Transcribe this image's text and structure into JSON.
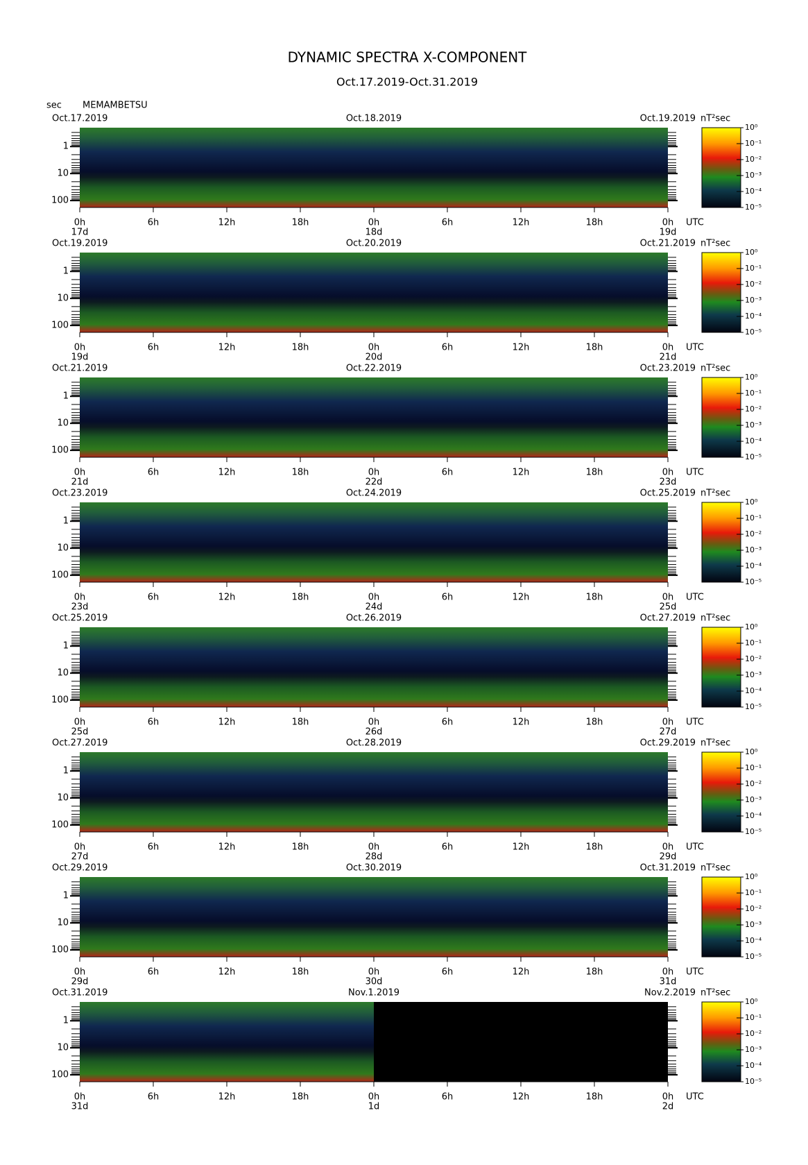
{
  "title": "DYNAMIC SPECTRA X-COMPONENT",
  "subtitle": "Oct.17.2019-Oct.31.2019",
  "y_unit": "sec",
  "station": "MEMAMBETSU",
  "chart_data": [
    {
      "type": "heatmap",
      "date_start": "Oct.17.2019",
      "date_mid": "Oct.18.2019",
      "date_end": "Oct.19.2019",
      "colorbar_label": "nT²sec",
      "x_unit": "UTC",
      "xlim": [
        0,
        48
      ],
      "coverage": [
        0,
        48
      ],
      "xticks": [
        {
          "value": 0,
          "label": "0h"
        },
        {
          "value": 6,
          "label": "6h"
        },
        {
          "value": 12,
          "label": "12h"
        },
        {
          "value": 18,
          "label": "18h"
        },
        {
          "value": 24,
          "label": "0h"
        },
        {
          "value": 30,
          "label": "6h"
        },
        {
          "value": 36,
          "label": "12h"
        },
        {
          "value": 42,
          "label": "18h"
        },
        {
          "value": 48,
          "label": "0h"
        }
      ],
      "day_ticks": [
        {
          "value": 0,
          "label": "17d"
        },
        {
          "value": 24,
          "label": "18d"
        },
        {
          "value": 48,
          "label": "19d"
        }
      ],
      "ylim": [
        0.2,
        180
      ],
      "log_y": true,
      "y_inverted": true,
      "yticks": [
        1,
        10,
        100
      ],
      "yminorticks": [
        0.3,
        0.4,
        0.5,
        0.6,
        0.7,
        0.8,
        0.9,
        2,
        3,
        4,
        5,
        6,
        7,
        8,
        9,
        20,
        30,
        40,
        50,
        60,
        70,
        80,
        90
      ],
      "colorbar_lim": [
        1e-05,
        1
      ],
      "colorbar_ticks": [
        {
          "value": 1,
          "label": "10⁰"
        },
        {
          "value": 0.1,
          "label": "10⁻¹"
        },
        {
          "value": 0.01,
          "label": "10⁻²"
        },
        {
          "value": 0.001,
          "label": "10⁻³"
        },
        {
          "value": 0.0001,
          "label": "10⁻⁴"
        },
        {
          "value": 1e-05,
          "label": "10⁻⁵"
        }
      ]
    },
    {
      "type": "heatmap",
      "date_start": "Oct.19.2019",
      "date_mid": "Oct.20.2019",
      "date_end": "Oct.21.2019",
      "colorbar_label": "nT²sec",
      "x_unit": "UTC",
      "xlim": [
        0,
        48
      ],
      "coverage": [
        0,
        48
      ],
      "xticks": [
        {
          "value": 0,
          "label": "0h"
        },
        {
          "value": 6,
          "label": "6h"
        },
        {
          "value": 12,
          "label": "12h"
        },
        {
          "value": 18,
          "label": "18h"
        },
        {
          "value": 24,
          "label": "0h"
        },
        {
          "value": 30,
          "label": "6h"
        },
        {
          "value": 36,
          "label": "12h"
        },
        {
          "value": 42,
          "label": "18h"
        },
        {
          "value": 48,
          "label": "0h"
        }
      ],
      "day_ticks": [
        {
          "value": 0,
          "label": "19d"
        },
        {
          "value": 24,
          "label": "20d"
        },
        {
          "value": 48,
          "label": "21d"
        }
      ],
      "ylim": [
        0.2,
        180
      ],
      "log_y": true,
      "y_inverted": true,
      "yticks": [
        1,
        10,
        100
      ],
      "yminorticks": [
        0.3,
        0.4,
        0.5,
        0.6,
        0.7,
        0.8,
        0.9,
        2,
        3,
        4,
        5,
        6,
        7,
        8,
        9,
        20,
        30,
        40,
        50,
        60,
        70,
        80,
        90
      ],
      "colorbar_lim": [
        1e-05,
        1
      ],
      "colorbar_ticks": [
        {
          "value": 1,
          "label": "10⁰"
        },
        {
          "value": 0.1,
          "label": "10⁻¹"
        },
        {
          "value": 0.01,
          "label": "10⁻²"
        },
        {
          "value": 0.001,
          "label": "10⁻³"
        },
        {
          "value": 0.0001,
          "label": "10⁻⁴"
        },
        {
          "value": 1e-05,
          "label": "10⁻⁵"
        }
      ]
    },
    {
      "type": "heatmap",
      "date_start": "Oct.21.2019",
      "date_mid": "Oct.22.2019",
      "date_end": "Oct.23.2019",
      "colorbar_label": "nT²sec",
      "x_unit": "UTC",
      "xlim": [
        0,
        48
      ],
      "coverage": [
        0,
        48
      ],
      "xticks": [
        {
          "value": 0,
          "label": "0h"
        },
        {
          "value": 6,
          "label": "6h"
        },
        {
          "value": 12,
          "label": "12h"
        },
        {
          "value": 18,
          "label": "18h"
        },
        {
          "value": 24,
          "label": "0h"
        },
        {
          "value": 30,
          "label": "6h"
        },
        {
          "value": 36,
          "label": "12h"
        },
        {
          "value": 42,
          "label": "18h"
        },
        {
          "value": 48,
          "label": "0h"
        }
      ],
      "day_ticks": [
        {
          "value": 0,
          "label": "21d"
        },
        {
          "value": 24,
          "label": "22d"
        },
        {
          "value": 48,
          "label": "23d"
        }
      ],
      "ylim": [
        0.2,
        180
      ],
      "log_y": true,
      "y_inverted": true,
      "yticks": [
        1,
        10,
        100
      ],
      "yminorticks": [
        0.3,
        0.4,
        0.5,
        0.6,
        0.7,
        0.8,
        0.9,
        2,
        3,
        4,
        5,
        6,
        7,
        8,
        9,
        20,
        30,
        40,
        50,
        60,
        70,
        80,
        90
      ],
      "colorbar_lim": [
        1e-05,
        1
      ],
      "colorbar_ticks": [
        {
          "value": 1,
          "label": "10⁰"
        },
        {
          "value": 0.1,
          "label": "10⁻¹"
        },
        {
          "value": 0.01,
          "label": "10⁻²"
        },
        {
          "value": 0.001,
          "label": "10⁻³"
        },
        {
          "value": 0.0001,
          "label": "10⁻⁴"
        },
        {
          "value": 1e-05,
          "label": "10⁻⁵"
        }
      ]
    },
    {
      "type": "heatmap",
      "date_start": "Oct.23.2019",
      "date_mid": "Oct.24.2019",
      "date_end": "Oct.25.2019",
      "colorbar_label": "nT²sec",
      "x_unit": "UTC",
      "xlim": [
        0,
        48
      ],
      "coverage": [
        0,
        48
      ],
      "xticks": [
        {
          "value": 0,
          "label": "0h"
        },
        {
          "value": 6,
          "label": "6h"
        },
        {
          "value": 12,
          "label": "12h"
        },
        {
          "value": 18,
          "label": "18h"
        },
        {
          "value": 24,
          "label": "0h"
        },
        {
          "value": 30,
          "label": "6h"
        },
        {
          "value": 36,
          "label": "12h"
        },
        {
          "value": 42,
          "label": "18h"
        },
        {
          "value": 48,
          "label": "0h"
        }
      ],
      "day_ticks": [
        {
          "value": 0,
          "label": "23d"
        },
        {
          "value": 24,
          "label": "24d"
        },
        {
          "value": 48,
          "label": "25d"
        }
      ],
      "ylim": [
        0.2,
        180
      ],
      "log_y": true,
      "y_inverted": true,
      "yticks": [
        1,
        10,
        100
      ],
      "yminorticks": [
        0.3,
        0.4,
        0.5,
        0.6,
        0.7,
        0.8,
        0.9,
        2,
        3,
        4,
        5,
        6,
        7,
        8,
        9,
        20,
        30,
        40,
        50,
        60,
        70,
        80,
        90
      ],
      "colorbar_lim": [
        1e-05,
        1
      ],
      "colorbar_ticks": [
        {
          "value": 1,
          "label": "10⁰"
        },
        {
          "value": 0.1,
          "label": "10⁻¹"
        },
        {
          "value": 0.01,
          "label": "10⁻²"
        },
        {
          "value": 0.001,
          "label": "10⁻³"
        },
        {
          "value": 0.0001,
          "label": "10⁻⁴"
        },
        {
          "value": 1e-05,
          "label": "10⁻⁵"
        }
      ]
    },
    {
      "type": "heatmap",
      "date_start": "Oct.25.2019",
      "date_mid": "Oct.26.2019",
      "date_end": "Oct.27.2019",
      "colorbar_label": "nT²sec",
      "x_unit": "UTC",
      "xlim": [
        0,
        48
      ],
      "coverage": [
        0,
        48
      ],
      "xticks": [
        {
          "value": 0,
          "label": "0h"
        },
        {
          "value": 6,
          "label": "6h"
        },
        {
          "value": 12,
          "label": "12h"
        },
        {
          "value": 18,
          "label": "18h"
        },
        {
          "value": 24,
          "label": "0h"
        },
        {
          "value": 30,
          "label": "6h"
        },
        {
          "value": 36,
          "label": "12h"
        },
        {
          "value": 42,
          "label": "18h"
        },
        {
          "value": 48,
          "label": "0h"
        }
      ],
      "day_ticks": [
        {
          "value": 0,
          "label": "25d"
        },
        {
          "value": 24,
          "label": "26d"
        },
        {
          "value": 48,
          "label": "27d"
        }
      ],
      "ylim": [
        0.2,
        180
      ],
      "log_y": true,
      "y_inverted": true,
      "yticks": [
        1,
        10,
        100
      ],
      "yminorticks": [
        0.3,
        0.4,
        0.5,
        0.6,
        0.7,
        0.8,
        0.9,
        2,
        3,
        4,
        5,
        6,
        7,
        8,
        9,
        20,
        30,
        40,
        50,
        60,
        70,
        80,
        90
      ],
      "colorbar_lim": [
        1e-05,
        1
      ],
      "colorbar_ticks": [
        {
          "value": 1,
          "label": "10⁰"
        },
        {
          "value": 0.1,
          "label": "10⁻¹"
        },
        {
          "value": 0.01,
          "label": "10⁻²"
        },
        {
          "value": 0.001,
          "label": "10⁻³"
        },
        {
          "value": 0.0001,
          "label": "10⁻⁴"
        },
        {
          "value": 1e-05,
          "label": "10⁻⁵"
        }
      ]
    },
    {
      "type": "heatmap",
      "date_start": "Oct.27.2019",
      "date_mid": "Oct.28.2019",
      "date_end": "Oct.29.2019",
      "colorbar_label": "nT²sec",
      "x_unit": "UTC",
      "xlim": [
        0,
        48
      ],
      "coverage": [
        0,
        48
      ],
      "xticks": [
        {
          "value": 0,
          "label": "0h"
        },
        {
          "value": 6,
          "label": "6h"
        },
        {
          "value": 12,
          "label": "12h"
        },
        {
          "value": 18,
          "label": "18h"
        },
        {
          "value": 24,
          "label": "0h"
        },
        {
          "value": 30,
          "label": "6h"
        },
        {
          "value": 36,
          "label": "12h"
        },
        {
          "value": 42,
          "label": "18h"
        },
        {
          "value": 48,
          "label": "0h"
        }
      ],
      "day_ticks": [
        {
          "value": 0,
          "label": "27d"
        },
        {
          "value": 24,
          "label": "28d"
        },
        {
          "value": 48,
          "label": "29d"
        }
      ],
      "ylim": [
        0.2,
        180
      ],
      "log_y": true,
      "y_inverted": true,
      "yticks": [
        1,
        10,
        100
      ],
      "yminorticks": [
        0.3,
        0.4,
        0.5,
        0.6,
        0.7,
        0.8,
        0.9,
        2,
        3,
        4,
        5,
        6,
        7,
        8,
        9,
        20,
        30,
        40,
        50,
        60,
        70,
        80,
        90
      ],
      "colorbar_lim": [
        1e-05,
        1
      ],
      "colorbar_ticks": [
        {
          "value": 1,
          "label": "10⁰"
        },
        {
          "value": 0.1,
          "label": "10⁻¹"
        },
        {
          "value": 0.01,
          "label": "10⁻²"
        },
        {
          "value": 0.001,
          "label": "10⁻³"
        },
        {
          "value": 0.0001,
          "label": "10⁻⁴"
        },
        {
          "value": 1e-05,
          "label": "10⁻⁵"
        }
      ]
    },
    {
      "type": "heatmap",
      "date_start": "Oct.29.2019",
      "date_mid": "Oct.30.2019",
      "date_end": "Oct.31.2019",
      "colorbar_label": "nT²sec",
      "x_unit": "UTC",
      "xlim": [
        0,
        48
      ],
      "coverage": [
        0,
        48
      ],
      "xticks": [
        {
          "value": 0,
          "label": "0h"
        },
        {
          "value": 6,
          "label": "6h"
        },
        {
          "value": 12,
          "label": "12h"
        },
        {
          "value": 18,
          "label": "18h"
        },
        {
          "value": 24,
          "label": "0h"
        },
        {
          "value": 30,
          "label": "6h"
        },
        {
          "value": 36,
          "label": "12h"
        },
        {
          "value": 42,
          "label": "18h"
        },
        {
          "value": 48,
          "label": "0h"
        }
      ],
      "day_ticks": [
        {
          "value": 0,
          "label": "29d"
        },
        {
          "value": 24,
          "label": "30d"
        },
        {
          "value": 48,
          "label": "31d"
        }
      ],
      "ylim": [
        0.2,
        180
      ],
      "log_y": true,
      "y_inverted": true,
      "yticks": [
        1,
        10,
        100
      ],
      "yminorticks": [
        0.3,
        0.4,
        0.5,
        0.6,
        0.7,
        0.8,
        0.9,
        2,
        3,
        4,
        5,
        6,
        7,
        8,
        9,
        20,
        30,
        40,
        50,
        60,
        70,
        80,
        90
      ],
      "colorbar_lim": [
        1e-05,
        1
      ],
      "colorbar_ticks": [
        {
          "value": 1,
          "label": "10⁰"
        },
        {
          "value": 0.1,
          "label": "10⁻¹"
        },
        {
          "value": 0.01,
          "label": "10⁻²"
        },
        {
          "value": 0.001,
          "label": "10⁻³"
        },
        {
          "value": 0.0001,
          "label": "10⁻⁴"
        },
        {
          "value": 1e-05,
          "label": "10⁻⁵"
        }
      ]
    },
    {
      "type": "heatmap",
      "date_start": "Oct.31.2019",
      "date_mid": "Nov.1.2019",
      "date_end": "Nov.2.2019",
      "colorbar_label": "nT²sec",
      "x_unit": "UTC",
      "xlim": [
        0,
        48
      ],
      "coverage": [
        0,
        24
      ],
      "xticks": [
        {
          "value": 0,
          "label": "0h"
        },
        {
          "value": 6,
          "label": "6h"
        },
        {
          "value": 12,
          "label": "12h"
        },
        {
          "value": 18,
          "label": "18h"
        },
        {
          "value": 24,
          "label": "0h"
        },
        {
          "value": 30,
          "label": "6h"
        },
        {
          "value": 36,
          "label": "12h"
        },
        {
          "value": 42,
          "label": "18h"
        },
        {
          "value": 48,
          "label": "0h"
        }
      ],
      "day_ticks": [
        {
          "value": 0,
          "label": "31d"
        },
        {
          "value": 24,
          "label": "1d"
        },
        {
          "value": 48,
          "label": "2d"
        }
      ],
      "ylim": [
        0.2,
        180
      ],
      "log_y": true,
      "y_inverted": true,
      "yticks": [
        1,
        10,
        100
      ],
      "yminorticks": [
        0.3,
        0.4,
        0.5,
        0.6,
        0.7,
        0.8,
        0.9,
        2,
        3,
        4,
        5,
        6,
        7,
        8,
        9,
        20,
        30,
        40,
        50,
        60,
        70,
        80,
        90
      ],
      "colorbar_lim": [
        1e-05,
        1
      ],
      "colorbar_ticks": [
        {
          "value": 1,
          "label": "10⁰"
        },
        {
          "value": 0.1,
          "label": "10⁻¹"
        },
        {
          "value": 0.01,
          "label": "10⁻²"
        },
        {
          "value": 0.001,
          "label": "10⁻³"
        },
        {
          "value": 0.0001,
          "label": "10⁻⁴"
        },
        {
          "value": 1e-05,
          "label": "10⁻⁵"
        }
      ]
    }
  ]
}
